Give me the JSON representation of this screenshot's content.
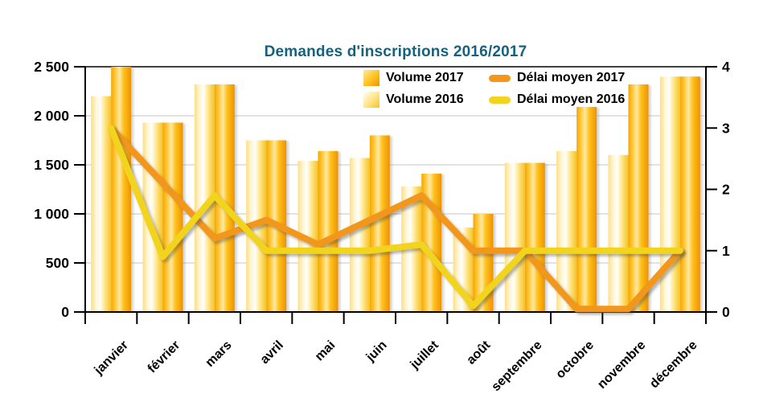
{
  "colors": {
    "title": "#16627E",
    "axis": "#000000",
    "grid": "#C6C6C6",
    "text": "#000000",
    "bar_2017_gradient": [
      "#F7A600",
      "#FFC93E",
      "#FFE9A4",
      "#FFC21D",
      "#EE9200"
    ],
    "bar_2016_gradient": [
      "#FFDE82",
      "#FFF6D8",
      "#FFFEF8",
      "#FFE483",
      "#F5C227"
    ],
    "line_2017": "#F2971B",
    "line_2016": "#F2D41E"
  },
  "legend": [
    {
      "label": "Volume 2017",
      "marker": "bar",
      "series_key": "volume_2017"
    },
    {
      "label": "Volume 2016",
      "marker": "bar",
      "series_key": "volume_2016"
    },
    {
      "label": "Délai moyen 2017",
      "marker": "line",
      "series_key": "delai_moyen_2017"
    },
    {
      "label": "Délai moyen 2016",
      "marker": "line",
      "series_key": "delai_moyen_2016"
    }
  ],
  "chart_data": {
    "type": "bar+line",
    "title": "Demandes d'inscriptions 2016/2017",
    "categories": [
      "janvier",
      "février",
      "mars",
      "avril",
      "mai",
      "juin",
      "juillet",
      "août",
      "septembre",
      "octobre",
      "novembre",
      "décembre"
    ],
    "series": [
      {
        "key": "volume_2017",
        "name": "Volume 2017",
        "type": "bar",
        "axis": "left",
        "values": [
          2500,
          1930,
          2320,
          1750,
          1640,
          1800,
          1410,
          1000,
          1520,
          2090,
          2320,
          2400
        ]
      },
      {
        "key": "volume_2016",
        "name": "Volume 2016",
        "type": "bar",
        "axis": "left",
        "values": [
          2200,
          1930,
          2320,
          1750,
          1540,
          1570,
          1280,
          860,
          1520,
          1640,
          1600,
          2400
        ]
      },
      {
        "key": "delai_moyen_2017",
        "name": "Délai moyen 2017",
        "type": "line",
        "axis": "right",
        "values": [
          3.0,
          2.1,
          1.2,
          1.5,
          1.1,
          1.5,
          1.9,
          1.0,
          1.0,
          0.05,
          0.05,
          1.0
        ]
      },
      {
        "key": "delai_moyen_2016",
        "name": "Délai moyen 2016",
        "type": "line",
        "axis": "right",
        "values": [
          3.0,
          0.9,
          1.9,
          1.0,
          1.0,
          1.0,
          1.1,
          0.1,
          1.0,
          1.0,
          1.0,
          1.0
        ]
      }
    ],
    "left_axis": {
      "min": 0,
      "max": 2500,
      "step": 500,
      "tick_labels": [
        "0",
        "500",
        "1 000",
        "1 500",
        "2 000",
        "2 500"
      ]
    },
    "right_axis": {
      "min": 0,
      "max": 4,
      "step": 1,
      "tick_labels": [
        "0",
        "1",
        "2",
        "3",
        "4"
      ]
    },
    "grid": true,
    "legend_position": "top"
  }
}
